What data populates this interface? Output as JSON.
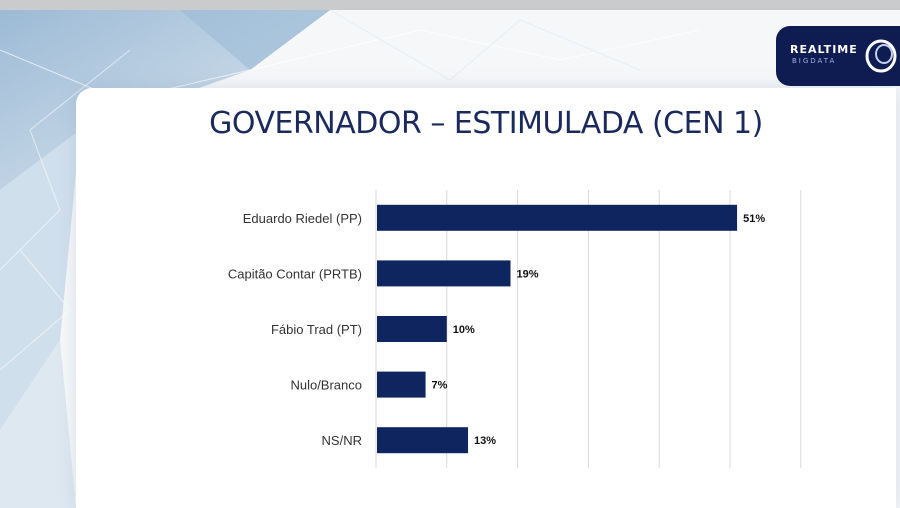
{
  "logo": {
    "line1": "REALTIME",
    "line2": "BIGDATA"
  },
  "title": "GOVERNADOR – ESTIMULADA (CEN 1)",
  "colors": {
    "bar": "#0f2560",
    "grid": "#d8d8d8",
    "label": "#333333",
    "logo_bg": "#0f1c52",
    "title": "#1b2a5c"
  },
  "chart_data": {
    "type": "bar",
    "orientation": "horizontal",
    "categories": [
      "Eduardo Riedel (PP)",
      "Capitão Contar (PRTB)",
      "Fábio Trad (PT)",
      "Nulo/Branco",
      "NS/NR"
    ],
    "values": [
      51,
      19,
      10,
      7,
      13
    ],
    "value_labels": [
      "51%",
      "19%",
      "10%",
      "7%",
      "13%"
    ],
    "unit": "%",
    "xlim": [
      0,
      60
    ],
    "grid": true,
    "legend": false
  }
}
